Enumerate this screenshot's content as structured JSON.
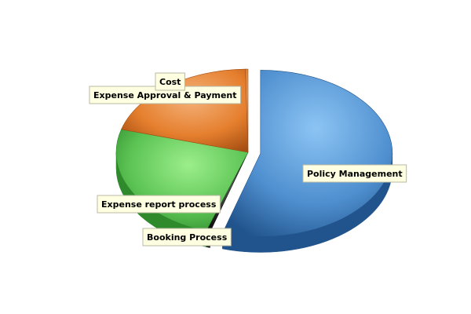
{
  "chart_data": {
    "type": "pie",
    "style": "3d-exploded",
    "slices": [
      {
        "label": "Policy Management",
        "value": 54,
        "color": "#4f8fcf",
        "dark": "#21548c",
        "light": "#8cc4f4"
      },
      {
        "label": "Booking Process",
        "value": 0.5,
        "color": "#2d2d2d",
        "dark": "#0d0d0d",
        "light": "#5a5a5a"
      },
      {
        "label": "Expense report process",
        "value": 24,
        "color": "#5cc454",
        "dark": "#2f8a2c",
        "light": "#9cee8c"
      },
      {
        "label": "Expense Approval & Payment",
        "value": 20,
        "color": "#e57f2e",
        "dark": "#a54e12",
        "light": "#f4b27a"
      },
      {
        "label": "Cost",
        "value": 0.3,
        "color": "#e57f2e",
        "dark": "#a54e12",
        "light": "#f4b27a"
      }
    ],
    "legend": "none"
  }
}
